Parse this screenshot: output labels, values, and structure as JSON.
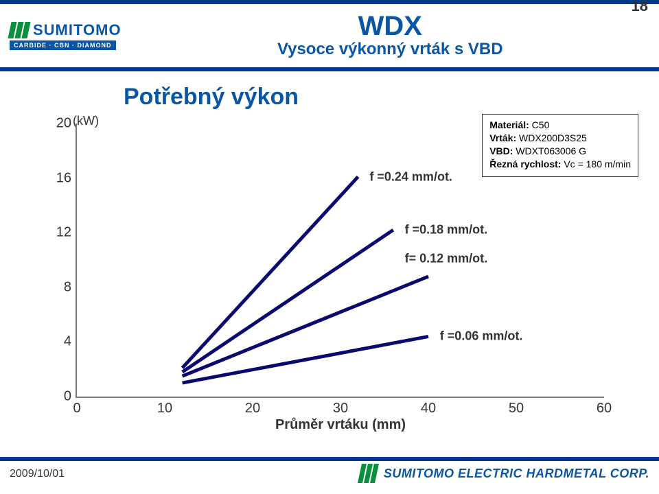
{
  "colors": {
    "brand_blue": "#0a56a5",
    "band_blue": "#003a8c",
    "brand_green": "#0a8f3c",
    "text": "#333333",
    "axis": "#777777",
    "series_line": "#0a0a6e",
    "background": "#ffffff"
  },
  "header": {
    "logo_word": "SUMITOMO",
    "logo_tagline": "CARBIDE · CBN · DIAMOND",
    "title_main": "WDX",
    "title_sub": "Vysoce výkonný vrták s VBD",
    "page_number": "18"
  },
  "section_title": "Potřebný výkon",
  "info_box": {
    "lines": [
      {
        "k": "Materiál:",
        "v": "C50"
      },
      {
        "k": "Vrták:",
        "v": "WDX200D3S25"
      },
      {
        "k": "VBD:",
        "v": "WDXT063006 G"
      },
      {
        "k": "Řezná rychlost:",
        "v": "Vc = 180 m/min"
      }
    ],
    "fontsize": 14
  },
  "chart": {
    "type": "line",
    "y_unit_label": "(kW)",
    "x_axis_title": "Průměr vrtáku (mm)",
    "xlim": [
      0,
      60
    ],
    "ylim": [
      0,
      20
    ],
    "xtick_step": 10,
    "ytick_step": 4,
    "yticks": [
      0,
      4,
      8,
      12,
      16,
      20
    ],
    "xticks": [
      0,
      10,
      20,
      30,
      40,
      50,
      60
    ],
    "axis_fontsize": 20,
    "title_fontsize": 20,
    "grid": false,
    "line_width": 5,
    "line_color": "#0a0a6e",
    "series": [
      {
        "id": "s1",
        "label": "f =0.24 mm/ot.",
        "points": [
          [
            12,
            2.1
          ],
          [
            32,
            16.1
          ]
        ],
        "label_at_x": 33,
        "label_at_y": 16.1
      },
      {
        "id": "s2",
        "label": "f =0.18 mm/ot.",
        "points": [
          [
            12,
            1.8
          ],
          [
            36,
            12.2
          ]
        ],
        "label_at_x": 37,
        "label_at_y": 12.2
      },
      {
        "id": "s3",
        "label": "f= 0.12 mm/ot.",
        "points": [
          [
            12,
            1.5
          ],
          [
            40,
            8.8
          ]
        ],
        "label_at_x": 37,
        "label_at_y": 10.1
      },
      {
        "id": "s4",
        "label": "f =0.06 mm/ot.",
        "points": [
          [
            12,
            1.0
          ],
          [
            40,
            4.4
          ]
        ],
        "label_at_x": 41,
        "label_at_y": 4.4
      }
    ]
  },
  "footer": {
    "date": "2009/10/01",
    "logo_text": "SUMITOMO ELECTRIC HARDMETAL CORP."
  }
}
